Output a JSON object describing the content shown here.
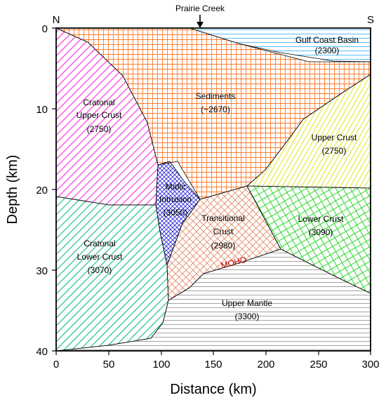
{
  "title_marker": "Prairie Creek",
  "compass": {
    "left": "N",
    "right": "S"
  },
  "axes": {
    "xlabel": "Distance (km)",
    "ylabel": "Depth (km)",
    "xticks": [
      "0",
      "50",
      "100",
      "150",
      "200",
      "250",
      "300"
    ],
    "yticks": [
      "0",
      "10",
      "20",
      "30",
      "40"
    ]
  },
  "regions": {
    "gulf": {
      "name": "Gulf Coast Basin",
      "density": "(2300)",
      "color": "#42b6ff"
    },
    "sediments": {
      "name": "Sediments",
      "density": "(~2670)",
      "color": "#ff7a2a"
    },
    "upper_crust_c": {
      "name1": "Cratonal",
      "name2": "Upper Crust",
      "density": "(2750)",
      "color": "#ff33dd"
    },
    "upper_crust": {
      "name": "Upper Crust",
      "density": "(2750)",
      "color": "#e6e62a"
    },
    "mafic": {
      "name1": "Mafic",
      "name2": "Intrusion",
      "density": "(3050)",
      "color": "#2a2ad8"
    },
    "transitional": {
      "name1": "Transitional",
      "name2": "Crust",
      "density": "(2980)",
      "color": "#e38a68"
    },
    "lower_crust": {
      "name": "Lower Crust",
      "density": "(3090)",
      "color": "#2ad82a"
    },
    "lower_crust_c": {
      "name1": "Cratonal",
      "name2": "Lower Crust",
      "density": "(3070)",
      "color": "#1fc08a"
    },
    "mantle": {
      "name": "Upper Mantle",
      "density": "(3300)",
      "color": "#9a9a9a"
    }
  },
  "moho_label": "MOHO",
  "moho_color": "#cc0000"
}
